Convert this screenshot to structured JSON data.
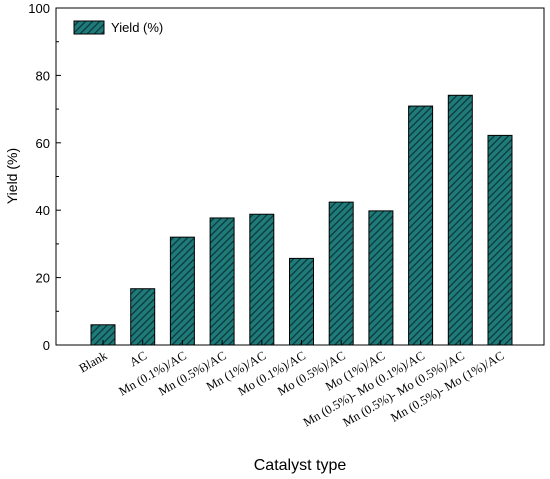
{
  "chart_data": {
    "type": "bar",
    "title": "",
    "xlabel": "Catalyst type",
    "ylabel": "Yield (%)",
    "ylim": [
      0,
      100
    ],
    "yticks": [
      0,
      20,
      40,
      60,
      80,
      100
    ],
    "grid": false,
    "legend_position": "top-left",
    "categories": [
      "Blank",
      "AC",
      "Mn (0.1%)/AC",
      "Mn (0.5%)/AC",
      "Mn (1%)/AC",
      "Mo (0.1%)/AC",
      "Mo (0.5%)/AC",
      "Mo (1%)/AC",
      "Mn (0.5%)- Mo (0.1%)/AC",
      "Mn (0.5%)- Mo (0.5%)/AC",
      "Mn (0.5%)- Mo (1%)/AC"
    ],
    "series": [
      {
        "name": "Yield (%)",
        "values": [
          6,
          16.7,
          32,
          37.7,
          38.8,
          25.7,
          42.4,
          39.8,
          70.9,
          74.1,
          62.2
        ]
      }
    ],
    "colors": {
      "bar_fill": "#1f7a7a",
      "hatch": "#0b3434",
      "stroke": "#000000"
    }
  }
}
